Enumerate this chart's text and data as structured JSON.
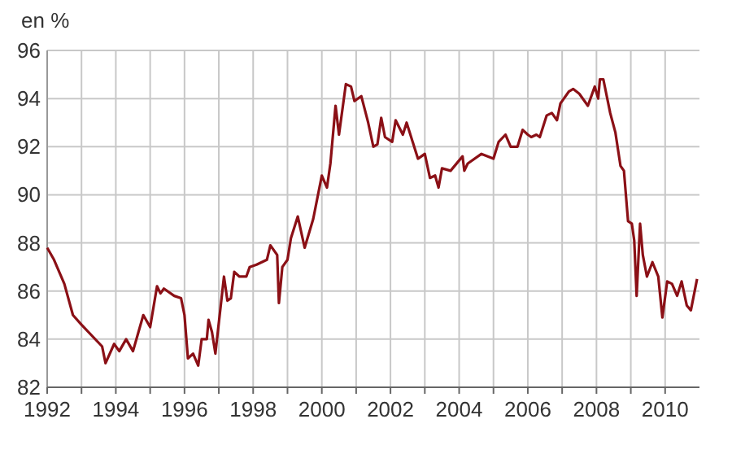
{
  "chart_data": {
    "type": "line",
    "ylabel": "en %",
    "xlim": [
      1992,
      2011
    ],
    "ylim": [
      82,
      96
    ],
    "xticks": [
      1992,
      {
        "value": 1993,
        "label": null
      },
      1994,
      {
        "value": 1995,
        "label": null
      },
      1996,
      {
        "value": 1997,
        "label": null
      },
      1998,
      {
        "value": 1999,
        "label": null
      },
      2000,
      {
        "value": 2001,
        "label": null
      },
      2002,
      {
        "value": 2003,
        "label": null
      },
      2004,
      {
        "value": 2005,
        "label": null
      },
      2006,
      {
        "value": 2007,
        "label": null
      },
      2008,
      {
        "value": 2009,
        "label": null
      },
      2010
    ],
    "yticks": [
      82,
      84,
      86,
      88,
      90,
      92,
      94,
      96
    ],
    "grid": true,
    "marker": "none",
    "line_style": "solid",
    "series": [
      {
        "color": "#8b1016",
        "x": [
          1992.0,
          1992.2,
          1992.5,
          1992.75,
          1993.0,
          1993.6,
          1993.7,
          1993.95,
          1994.1,
          1994.3,
          1994.5,
          1994.8,
          1995.0,
          1995.2,
          1995.3,
          1995.4,
          1995.7,
          1995.9,
          1996.0,
          1996.1,
          1996.25,
          1996.4,
          1996.5,
          1996.65,
          1996.7,
          1996.8,
          1996.9,
          1997.15,
          1997.25,
          1997.35,
          1997.45,
          1997.6,
          1997.8,
          1997.9,
          1998.1,
          1998.4,
          1998.5,
          1998.7,
          1998.75,
          1998.85,
          1999.0,
          1999.1,
          1999.3,
          1999.5,
          1999.75,
          2000.0,
          2000.15,
          2000.25,
          2000.4,
          2000.5,
          2000.7,
          2000.85,
          2000.95,
          2001.15,
          2001.35,
          2001.5,
          2001.62,
          2001.73,
          2001.84,
          2002.05,
          2002.15,
          2002.36,
          2002.47,
          2002.8,
          2003.0,
          2003.15,
          2003.3,
          2003.4,
          2003.5,
          2003.75,
          2004.1,
          2004.15,
          2004.25,
          2004.65,
          2005.0,
          2005.15,
          2005.35,
          2005.5,
          2005.7,
          2005.85,
          2006.0,
          2006.1,
          2006.25,
          2006.35,
          2006.55,
          2006.7,
          2006.85,
          2006.95,
          2007.2,
          2007.32,
          2007.5,
          2007.75,
          2007.95,
          2008.05,
          2008.1,
          2008.2,
          2008.4,
          2008.55,
          2008.7,
          2008.8,
          2008.92,
          2009.03,
          2009.1,
          2009.17,
          2009.27,
          2009.35,
          2009.47,
          2009.63,
          2009.8,
          2009.92,
          2010.06,
          2010.2,
          2010.35,
          2010.48,
          2010.63,
          2010.75,
          2010.93
        ],
        "values": [
          87.8,
          87.3,
          86.3,
          85.0,
          84.6,
          83.7,
          83.0,
          83.8,
          83.5,
          84.0,
          83.5,
          85.0,
          84.5,
          86.2,
          85.9,
          86.1,
          85.8,
          85.7,
          85.0,
          83.2,
          83.4,
          82.9,
          84.0,
          84.0,
          84.8,
          84.3,
          83.4,
          86.6,
          85.6,
          85.7,
          86.8,
          86.6,
          86.6,
          87.0,
          87.1,
          87.3,
          87.9,
          87.5,
          85.5,
          87.0,
          87.3,
          88.2,
          89.1,
          87.8,
          89.0,
          90.8,
          90.3,
          91.3,
          93.7,
          92.5,
          94.6,
          94.5,
          93.9,
          94.1,
          93.0,
          92.0,
          92.1,
          93.2,
          92.4,
          92.2,
          93.1,
          92.5,
          93.0,
          91.5,
          91.7,
          90.7,
          90.8,
          90.3,
          91.1,
          91.0,
          91.6,
          91.0,
          91.3,
          91.7,
          91.5,
          92.2,
          92.5,
          92.0,
          92.0,
          92.7,
          92.5,
          92.4,
          92.5,
          92.4,
          93.3,
          93.4,
          93.1,
          93.8,
          94.3,
          94.4,
          94.2,
          93.7,
          94.5,
          94.0,
          94.8,
          94.8,
          93.4,
          92.6,
          91.2,
          91.0,
          88.9,
          88.8,
          88.1,
          85.8,
          88.8,
          87.5,
          86.6,
          87.2,
          86.6,
          84.9,
          86.4,
          86.3,
          85.8,
          86.4,
          85.4,
          85.2,
          86.5
        ]
      }
    ]
  }
}
